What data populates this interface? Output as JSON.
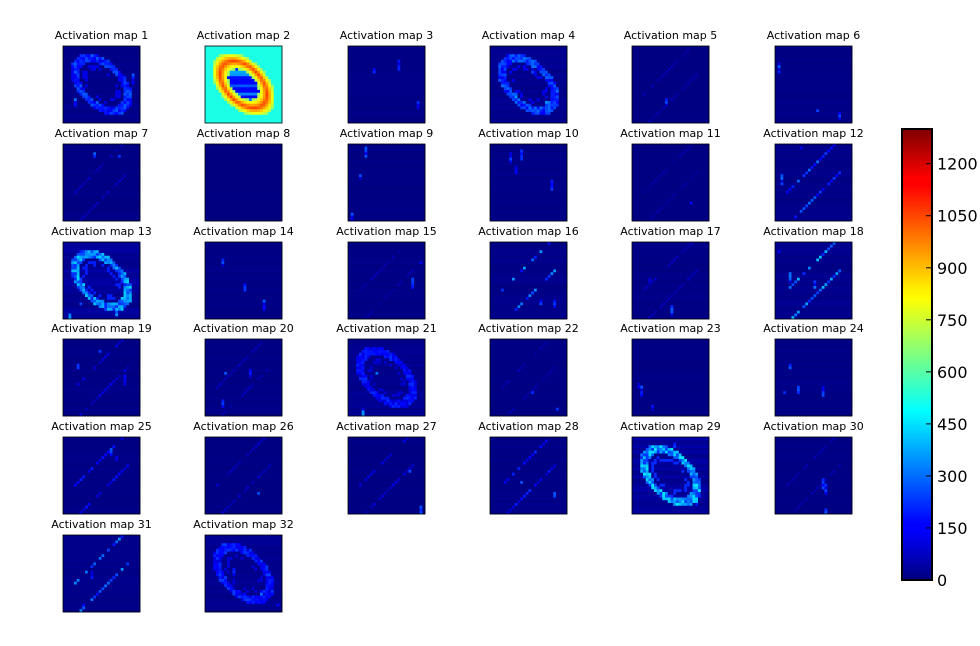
{
  "chart_data": {
    "type": "heatmap",
    "layout": {
      "rows": 6,
      "cols": 6,
      "grid_size": 28
    },
    "colormap": "jet",
    "value_range": [
      0,
      1300
    ],
    "panels": [
      {
        "title": "Activation map 1",
        "pattern": {
          "ring": 260,
          "diag": 0,
          "spots": 2,
          "base": 25
        }
      },
      {
        "title": "Activation map 2",
        "pattern": {
          "ring": 1050,
          "diag": 0,
          "spots": 0,
          "base": 520,
          "filled": true
        }
      },
      {
        "title": "Activation map 3",
        "pattern": {
          "ring": 0,
          "diag": 0,
          "spots": 3,
          "base": 15
        }
      },
      {
        "title": "Activation map 4",
        "pattern": {
          "ring": 280,
          "diag": 0,
          "spots": 4,
          "base": 40
        }
      },
      {
        "title": "Activation map 5",
        "pattern": {
          "ring": 0,
          "diag": 60,
          "spots": 1,
          "base": 10
        }
      },
      {
        "title": "Activation map 6",
        "pattern": {
          "ring": 0,
          "diag": 0,
          "spots": 3,
          "base": 15
        }
      },
      {
        "title": "Activation map 7",
        "pattern": {
          "ring": 0,
          "diag": 80,
          "spots": 2,
          "base": 15
        }
      },
      {
        "title": "Activation map 8",
        "pattern": {
          "ring": 0,
          "diag": 0,
          "spots": 0,
          "base": 5
        }
      },
      {
        "title": "Activation map 9",
        "pattern": {
          "ring": 0,
          "diag": 0,
          "spots": 3,
          "base": 12
        }
      },
      {
        "title": "Activation map 10",
        "pattern": {
          "ring": 0,
          "diag": 0,
          "spots": 4,
          "base": 15
        }
      },
      {
        "title": "Activation map 11",
        "pattern": {
          "ring": 0,
          "diag": 50,
          "spots": 1,
          "base": 10
        }
      },
      {
        "title": "Activation map 12",
        "pattern": {
          "ring": 0,
          "diag": 280,
          "spots": 2,
          "base": 20
        }
      },
      {
        "title": "Activation map 13",
        "pattern": {
          "ring": 400,
          "diag": 0,
          "spots": 3,
          "base": 60
        }
      },
      {
        "title": "Activation map 14",
        "pattern": {
          "ring": 0,
          "diag": 0,
          "spots": 3,
          "base": 15
        }
      },
      {
        "title": "Activation map 15",
        "pattern": {
          "ring": 0,
          "diag": 60,
          "spots": 2,
          "base": 15
        }
      },
      {
        "title": "Activation map 16",
        "pattern": {
          "ring": 0,
          "diag": 330,
          "spots": 2,
          "base": 25
        }
      },
      {
        "title": "Activation map 17",
        "pattern": {
          "ring": 0,
          "diag": 80,
          "spots": 2,
          "base": 15
        }
      },
      {
        "title": "Activation map 18",
        "pattern": {
          "ring": 0,
          "diag": 380,
          "spots": 3,
          "base": 30
        }
      },
      {
        "title": "Activation map 19",
        "pattern": {
          "ring": 0,
          "diag": 120,
          "spots": 3,
          "base": 15
        }
      },
      {
        "title": "Activation map 20",
        "pattern": {
          "ring": 0,
          "diag": 80,
          "spots": 3,
          "base": 15
        }
      },
      {
        "title": "Activation map 21",
        "pattern": {
          "ring": 200,
          "diag": 0,
          "spots": 2,
          "base": 40
        }
      },
      {
        "title": "Activation map 22",
        "pattern": {
          "ring": 0,
          "diag": 60,
          "spots": 2,
          "base": 12
        }
      },
      {
        "title": "Activation map 23",
        "pattern": {
          "ring": 0,
          "diag": 0,
          "spots": 3,
          "base": 12
        }
      },
      {
        "title": "Activation map 24",
        "pattern": {
          "ring": 0,
          "diag": 0,
          "spots": 4,
          "base": 15
        }
      },
      {
        "title": "Activation map 25",
        "pattern": {
          "ring": 0,
          "diag": 180,
          "spots": 2,
          "base": 15
        }
      },
      {
        "title": "Activation map 26",
        "pattern": {
          "ring": 0,
          "diag": 100,
          "spots": 1,
          "base": 10
        }
      },
      {
        "title": "Activation map 27",
        "pattern": {
          "ring": 0,
          "diag": 120,
          "spots": 2,
          "base": 12
        }
      },
      {
        "title": "Activation map 28",
        "pattern": {
          "ring": 0,
          "diag": 200,
          "spots": 2,
          "base": 20
        }
      },
      {
        "title": "Activation map 29",
        "pattern": {
          "ring": 430,
          "diag": 0,
          "spots": 2,
          "base": 70
        }
      },
      {
        "title": "Activation map 30",
        "pattern": {
          "ring": 0,
          "diag": 60,
          "spots": 3,
          "base": 12
        }
      },
      {
        "title": "Activation map 31",
        "pattern": {
          "ring": 0,
          "diag": 320,
          "spots": 2,
          "base": 20
        }
      },
      {
        "title": "Activation map 32",
        "pattern": {
          "ring": 220,
          "diag": 0,
          "spots": 3,
          "base": 35
        }
      }
    ],
    "colorbar": {
      "ticks": [
        0,
        150,
        300,
        450,
        600,
        750,
        900,
        1050,
        1200
      ],
      "tick_labels": [
        "0",
        "150",
        "300",
        "450",
        "600",
        "750",
        "900",
        "1050",
        "1200"
      ]
    }
  }
}
